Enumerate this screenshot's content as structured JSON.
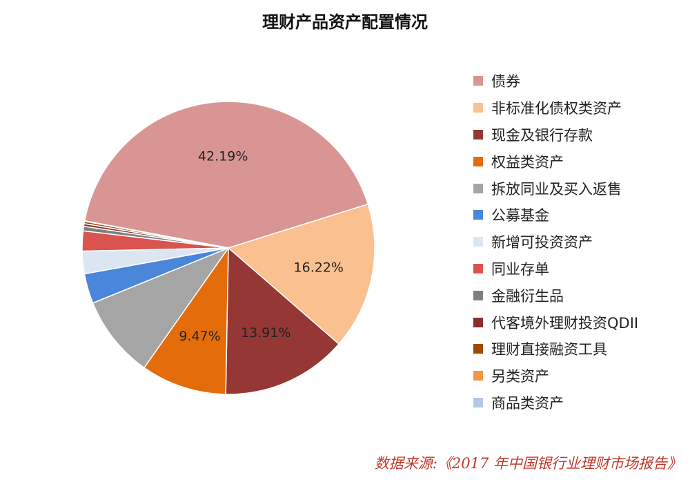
{
  "chart_data": {
    "type": "pie",
    "title": "理财产品资产配置情况",
    "slices": [
      {
        "name": "债券",
        "value": 42.19,
        "label": "42.19%",
        "color": "#d99594"
      },
      {
        "name": "非标准化债权类资产",
        "value": 16.22,
        "label": "16.22%",
        "color": "#fac090"
      },
      {
        "name": "现金及银行存款",
        "value": 13.91,
        "label": "13.91%",
        "color": "#953735"
      },
      {
        "name": "权益类资产",
        "value": 9.47,
        "label": "9.47%",
        "color": "#e46c0a"
      },
      {
        "name": "拆放同业及买入返售",
        "value": 9.1,
        "label": "",
        "color": "#a5a5a5"
      },
      {
        "name": "公募基金",
        "value": 3.3,
        "label": "",
        "color": "#4a86d9"
      },
      {
        "name": "新增可投资资产",
        "value": 2.5,
        "label": "",
        "color": "#dce6f2"
      },
      {
        "name": "同业存单",
        "value": 2.2,
        "label": "",
        "color": "#d9534f"
      },
      {
        "name": "金融衍生品",
        "value": 0.5,
        "label": "",
        "color": "#7f7f7f"
      },
      {
        "name": "代客境外理财投资QDII",
        "value": 0.3,
        "label": "",
        "color": "#8b2e2e"
      },
      {
        "name": "理财直接融资工具",
        "value": 0.25,
        "label": "",
        "color": "#a04a00"
      },
      {
        "name": "另类资产",
        "value": 0.05,
        "label": "",
        "color": "#f79646"
      },
      {
        "name": "商品类资产",
        "value": 0.01,
        "label": "",
        "color": "#b4c7e7"
      }
    ],
    "legend_position": "right"
  },
  "source": "数据来源:《2017 年中国银行业理财市场报告》"
}
